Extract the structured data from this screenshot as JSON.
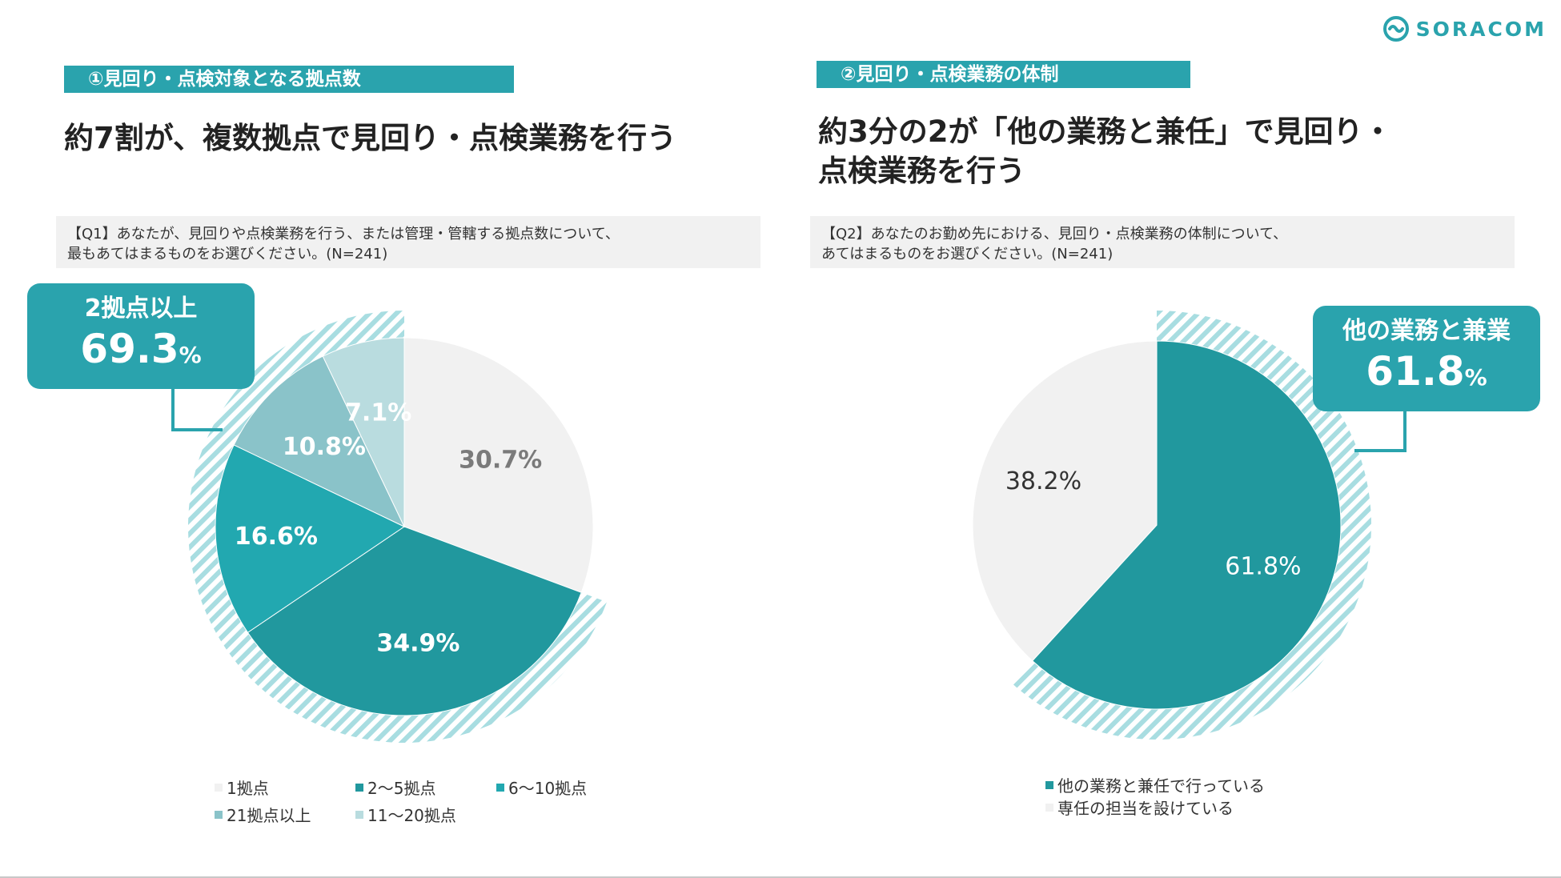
{
  "brand": {
    "name": "SORACOM",
    "color": "#2aa3ad",
    "icon": "soracom-logo-icon"
  },
  "left": {
    "tag": "①見回り・点検対象となる拠点数",
    "headline_lines": [
      "約7割が、複数拠点で見回り・点検業務を行う"
    ],
    "question_lines": [
      "【Q1】あなたが、見回りや点検業務を行う、または管理・管轄する拠点数について、",
      "最もあてはまるものをお選びください。(N=241)"
    ],
    "callout": {
      "label": "2拠点以上",
      "value": "69.3",
      "unit": "%"
    }
  },
  "right": {
    "tag": "②見回り・点検業務の体制",
    "headline_lines": [
      "約3分の2が「他の業務と兼任」で見回り・",
      "点検業務を行う"
    ],
    "question_lines": [
      "【Q2】あなたのお勤め先における、見回り・点検業務の体制について、",
      "あてはまるものをお選びください。(N=241)"
    ],
    "callout": {
      "label": "他の業務と兼業",
      "value": "61.8",
      "unit": "%"
    }
  },
  "chart_data": [
    {
      "type": "pie",
      "title": "",
      "categories": [
        "1拠点",
        "2〜5拠点",
        "6〜10拠点",
        "21拠点以上",
        "11〜20拠点"
      ],
      "values": [
        30.7,
        34.9,
        16.6,
        10.8,
        7.1
      ],
      "slice_labels": [
        "30.7%",
        "34.9%",
        "16.6%",
        "10.8%",
        "7.1%"
      ],
      "colors": [
        "#f1f1f1",
        "#21989e",
        "#22a8b0",
        "#8ac3c9",
        "#b9dcdf"
      ],
      "label_colors": [
        "#7a7a7a",
        "#ffffff",
        "#ffffff",
        "#ffffff",
        "#ffffff"
      ],
      "highlight": "2拠点以上",
      "legend_position": "bottom"
    },
    {
      "type": "pie",
      "title": "",
      "categories": [
        "他の業務と兼任で行っている",
        "専任の担当を設けている"
      ],
      "values": [
        61.8,
        38.2
      ],
      "slice_labels": [
        "61.8%",
        "38.2%"
      ],
      "colors": [
        "#21989e",
        "#f1f1f1"
      ],
      "label_colors": [
        "#ffffff",
        "#333333"
      ],
      "highlight": "他の業務と兼業",
      "legend_position": "bottom"
    }
  ]
}
